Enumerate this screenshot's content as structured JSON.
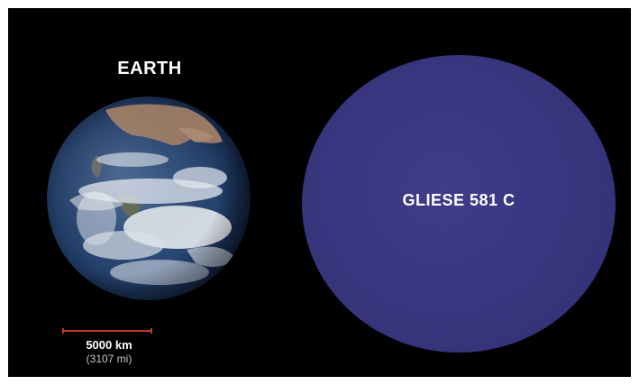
{
  "earth": {
    "title": "EARTH",
    "scale": {
      "km": "5000 km",
      "mi": "(3107 mi)",
      "bar_color": "#c0392b"
    }
  },
  "gliese": {
    "label": "GLIESE 581 C",
    "color": "#37357c"
  },
  "colors": {
    "background": "#000000",
    "frame": "#ffffff",
    "text": "#ffffff"
  }
}
